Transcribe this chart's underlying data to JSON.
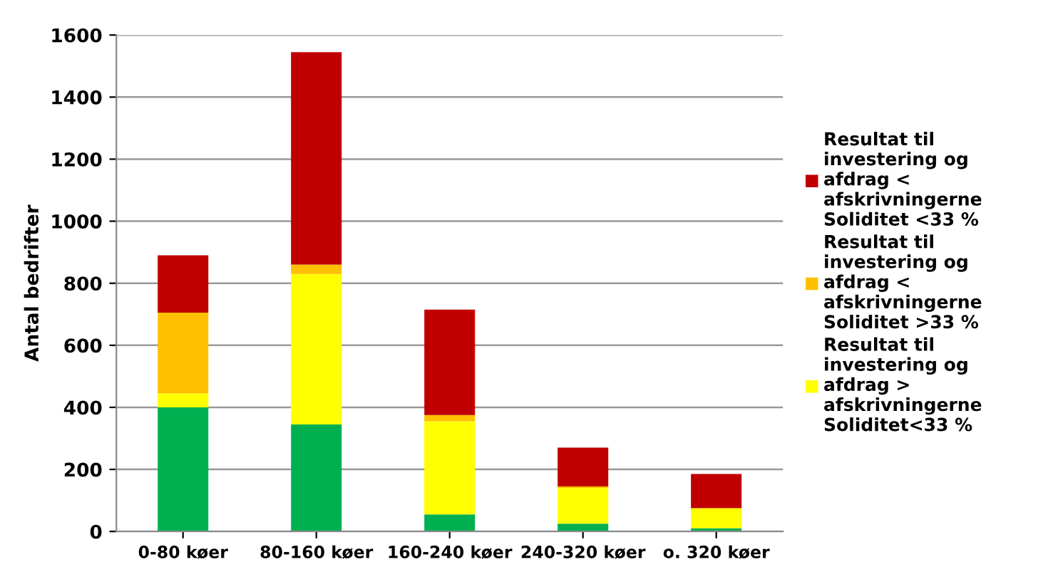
{
  "chart_data": {
    "type": "bar",
    "stacked": true,
    "ylabel": "Antal bedrifter",
    "categories": [
      "0-80 køer",
      "80-160 køer",
      "160-240 køer",
      "240-320 køer",
      "o. 320 køer"
    ],
    "series": [
      {
        "color": "#00b050",
        "values": [
          400,
          345,
          55,
          25,
          10
        ]
      },
      {
        "name": "Resultat til\ninvestering og\nafdrag >\nafskrivningerne\nSoliditet<33 %",
        "color": "#ffff00",
        "values": [
          45,
          485,
          300,
          115,
          65
        ]
      },
      {
        "name": "Resultat til\ninvestering og\nafdrag <\nafskrivningerne\nSoliditet >33 %",
        "color": "#ffc000",
        "values": [
          260,
          30,
          20,
          5,
          0
        ]
      },
      {
        "name": "Resultat til\ninvestering og\nafdrag <\nafskrivningerne\nSoliditet <33 %",
        "color": "#c00000",
        "values": [
          185,
          685,
          340,
          125,
          110
        ]
      }
    ],
    "ylim": [
      0,
      1600
    ],
    "yticks": [
      0,
      200,
      400,
      600,
      800,
      1000,
      1200,
      1400,
      1600
    ],
    "grid": "y",
    "legend": "right"
  }
}
